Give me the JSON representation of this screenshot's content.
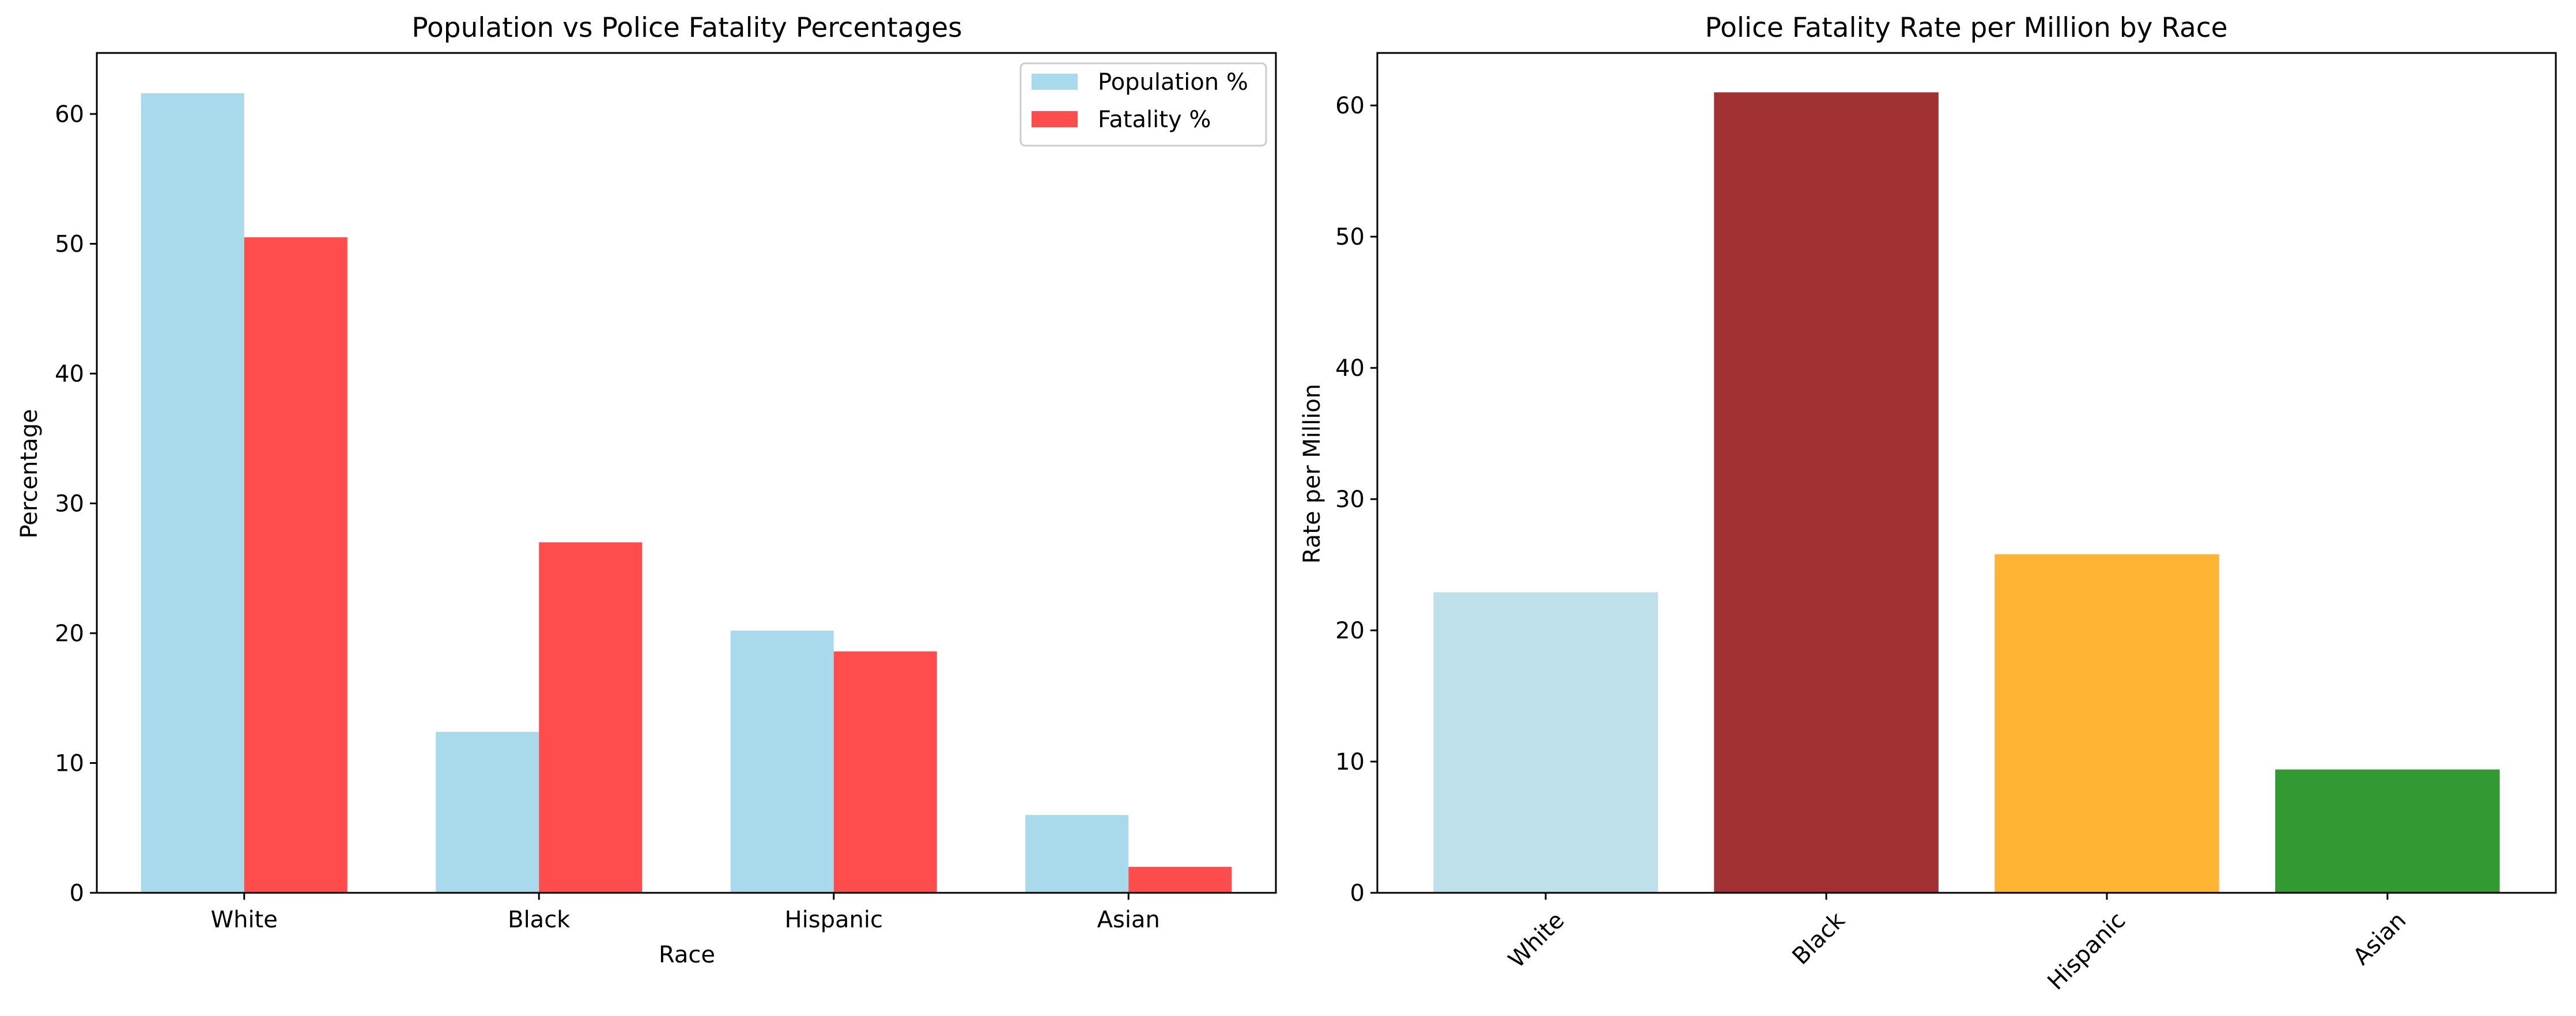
{
  "chart_data": [
    {
      "type": "bar",
      "title": "Population vs Police Fatality Percentages",
      "xlabel": "Race",
      "ylabel": "Percentage",
      "categories": [
        "White",
        "Black",
        "Hispanic",
        "Asian"
      ],
      "series": [
        {
          "name": "Population %",
          "values": [
            61.6,
            12.4,
            20.2,
            6.0
          ],
          "color": "#a8daec"
        },
        {
          "name": "Fatality %",
          "values": [
            50.5,
            27.0,
            18.6,
            2.0
          ],
          "color": "#ff4c4c"
        }
      ],
      "ylim": [
        0,
        64.7
      ],
      "yticks": [
        "0",
        "10",
        "20",
        "30",
        "40",
        "50",
        "60"
      ],
      "legend": "top-right",
      "grid": false
    },
    {
      "type": "bar",
      "title": "Police Fatality Rate per Million by Race",
      "xlabel": "",
      "ylabel": "Rate per Million",
      "categories": [
        "White",
        "Black",
        "Hispanic",
        "Asian"
      ],
      "values": [
        22.9,
        61.0,
        25.8,
        9.4
      ],
      "colors": [
        "#bee0eb",
        "#a13133",
        "#ffb533",
        "#339933"
      ],
      "ylim": [
        0,
        64.0
      ],
      "yticks": [
        "0",
        "10",
        "20",
        "30",
        "40",
        "50",
        "60"
      ],
      "xtick_rotation": 45,
      "grid": false
    }
  ]
}
